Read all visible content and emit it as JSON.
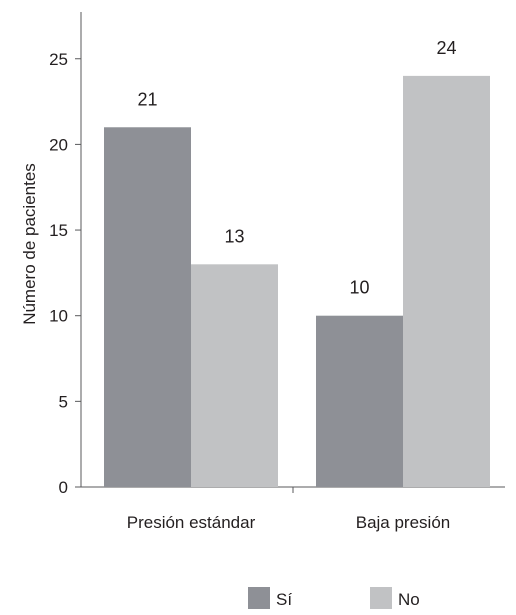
{
  "chart_data": {
    "type": "bar",
    "title": "",
    "xlabel": "",
    "ylabel": "Número de pacientes",
    "categories": [
      "Presión estándar",
      "Baja presión"
    ],
    "series": [
      {
        "name": "Sí",
        "values": [
          21,
          10
        ],
        "value_labels": [
          "21",
          "10"
        ]
      },
      {
        "name": "No",
        "values": [
          13,
          24
        ],
        "value_labels": [
          "13",
          "24"
        ]
      }
    ],
    "ylim": [
      0,
      28
    ],
    "yticks": [
      0,
      5,
      10,
      15,
      20,
      25
    ],
    "grid": false,
    "legend_position": "bottom"
  },
  "colors": {
    "series": [
      "#8e9096",
      "#c1c2c4"
    ],
    "axis": "#58595b",
    "text": "#231f20"
  }
}
